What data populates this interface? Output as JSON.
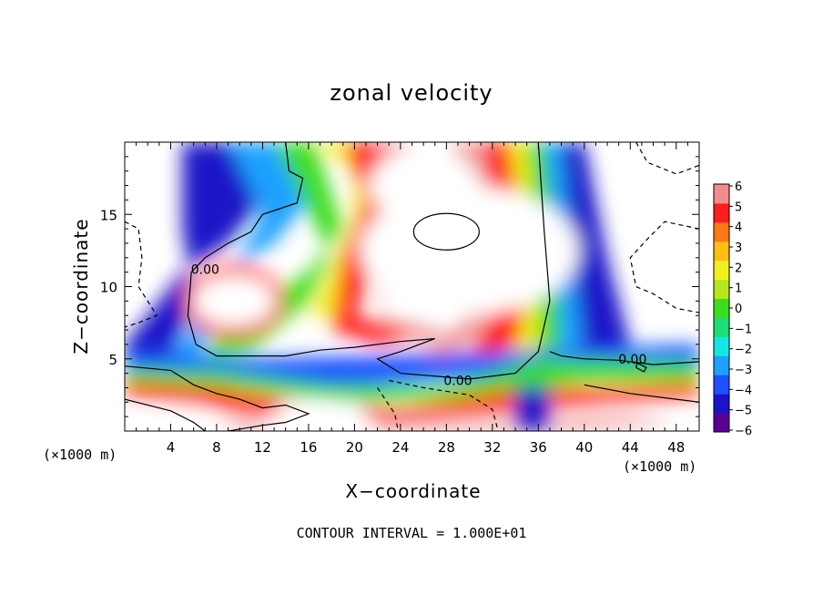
{
  "chart_data": {
    "type": "heatmap",
    "title": "zonal velocity",
    "xlabel": "X−coordinate",
    "ylabel": "Z−coordinate",
    "x_unit_label": "(×1000 m)",
    "footer": "CONTOUR INTERVAL = 1.000E+01",
    "xlim": [
      0,
      50
    ],
    "ylim": [
      0,
      20
    ],
    "x_ticks": [
      4,
      8,
      12,
      16,
      20,
      24,
      28,
      32,
      36,
      40,
      44,
      48
    ],
    "y_ticks": [
      5,
      10,
      15
    ],
    "colorbar": {
      "ticks": [
        "6",
        "5",
        "4",
        "3",
        "2",
        "1",
        "0",
        "−1",
        "−2",
        "−3",
        "−4",
        "−5",
        "−6"
      ],
      "range": [
        -6,
        6
      ],
      "colors": [
        "#5a0096",
        "#1a14c8",
        "#1e50ff",
        "#1ea0ff",
        "#14e6e6",
        "#1edc78",
        "#3cdc1e",
        "#b4e61e",
        "#f0f01e",
        "#ffbe14",
        "#ff7814",
        "#ff1e1e",
        "#f08c8c"
      ]
    },
    "contour_labels": [
      {
        "text": "0.00",
        "x": 7.0,
        "y": 11.2
      },
      {
        "text": "0.00",
        "x": 29.0,
        "y": 3.5
      },
      {
        "text": "0.00",
        "x": 44.2,
        "y": 5.0
      }
    ]
  }
}
